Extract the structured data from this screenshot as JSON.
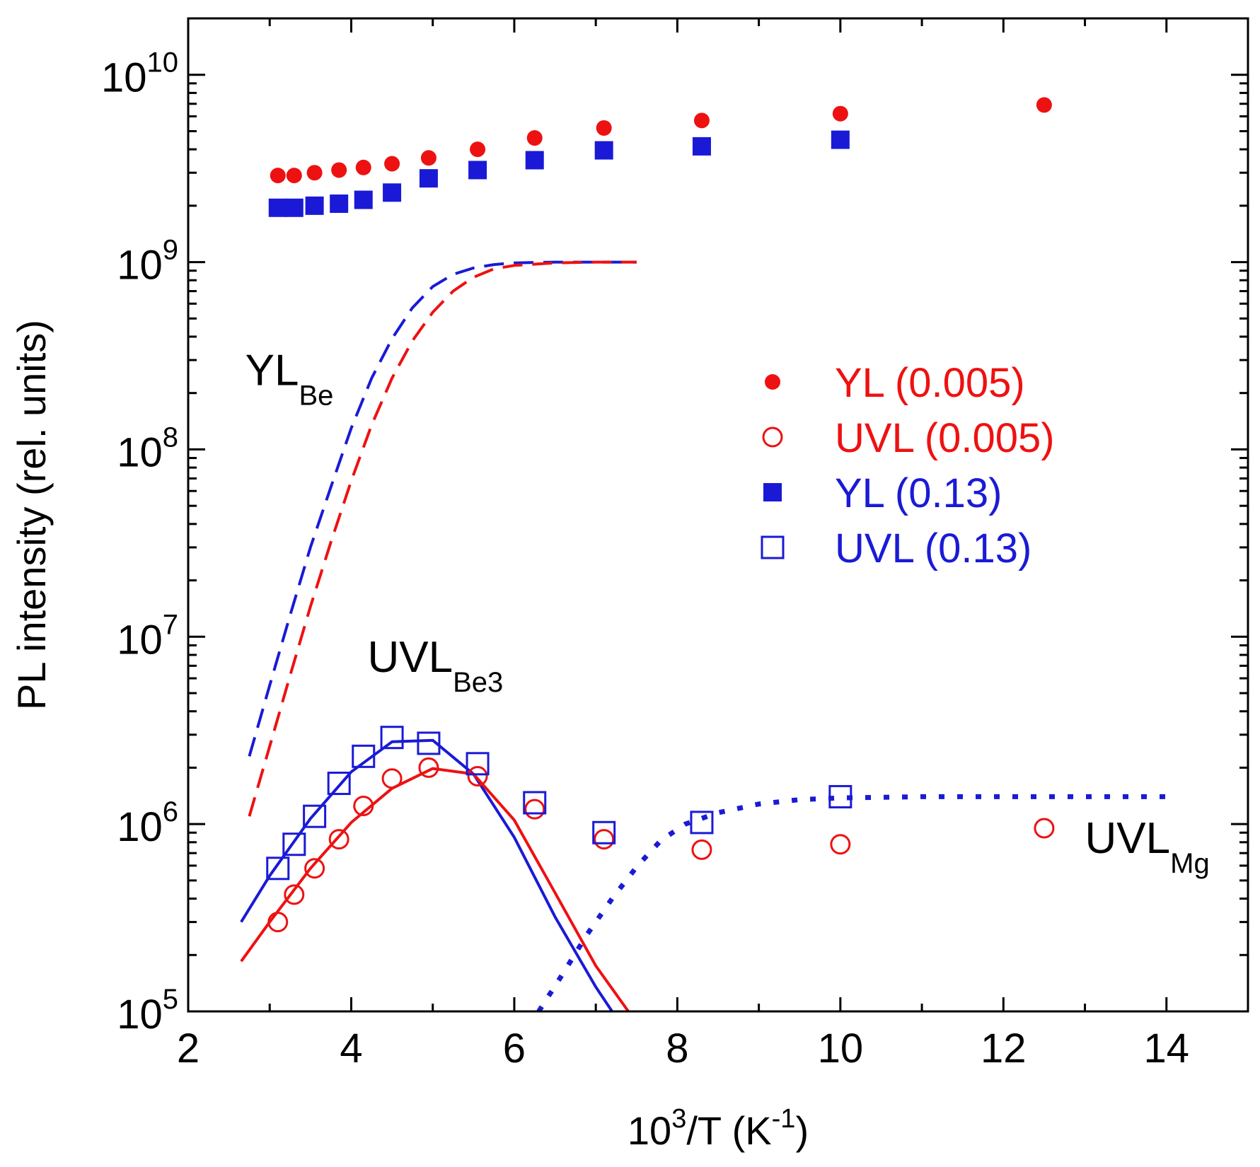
{
  "chart_data": {
    "type": "scatter",
    "title": "",
    "xlabel": {
      "base": "10",
      "sup": "3",
      "mid": "/T (K",
      "sup2": "-1",
      "end": ")"
    },
    "ylabel": "PL intensity (rel. units)",
    "xlim": [
      2,
      15
    ],
    "ylim": [
      100000,
      20000000000
    ],
    "yscale": "log",
    "grid": false,
    "x_ticks": [
      2,
      4,
      6,
      8,
      10,
      12,
      14
    ],
    "x_tick_labels": [
      "2",
      "4",
      "6",
      "8",
      "10",
      "12",
      "14"
    ],
    "y_ticks": [
      {
        "value": 100000,
        "base": "10",
        "exp": "5"
      },
      {
        "value": 1000000,
        "base": "10",
        "exp": "6"
      },
      {
        "value": 10000000,
        "base": "10",
        "exp": "7"
      },
      {
        "value": 100000000,
        "base": "10",
        "exp": "8"
      },
      {
        "value": 1000000000,
        "base": "10",
        "exp": "9"
      },
      {
        "value": 10000000000,
        "base": "10",
        "exp": "10"
      }
    ],
    "series": [
      {
        "name": "YL (0.005)",
        "color": "#ee1111",
        "marker": "circle-filled",
        "x": [
          3.1,
          3.3,
          3.55,
          3.85,
          4.15,
          4.5,
          4.95,
          5.55,
          6.25,
          7.1,
          8.3,
          10.0,
          12.5
        ],
        "y": [
          2900000000.0,
          2900000000.0,
          3000000000.0,
          3100000000.0,
          3200000000.0,
          3350000000.0,
          3600000000.0,
          4000000000.0,
          4600000000.0,
          5200000000.0,
          5700000000.0,
          6200000000.0,
          6900000000.0
        ]
      },
      {
        "name": "UVL (0.005)",
        "color": "#ee1111",
        "marker": "circle-open",
        "x": [
          3.1,
          3.3,
          3.55,
          3.85,
          4.15,
          4.5,
          4.95,
          5.55,
          6.25,
          7.1,
          8.3,
          10.0,
          12.5
        ],
        "y": [
          300000.0,
          420000.0,
          580000.0,
          830000.0,
          1250000.0,
          1750000.0,
          2000000.0,
          1800000.0,
          1200000.0,
          830000.0,
          730000.0,
          780000.0,
          950000.0
        ]
      },
      {
        "name": "YL (0.13)",
        "color": "#1a1ad6",
        "marker": "square-filled",
        "x": [
          3.1,
          3.3,
          3.55,
          3.85,
          4.15,
          4.5,
          4.95,
          5.55,
          6.25,
          7.1,
          8.3,
          10.0
        ],
        "y": [
          1950000000.0,
          1950000000.0,
          2000000000.0,
          2050000000.0,
          2150000000.0,
          2350000000.0,
          2800000000.0,
          3100000000.0,
          3500000000.0,
          3950000000.0,
          4150000000.0,
          4500000000.0
        ]
      },
      {
        "name": "UVL (0.13)",
        "color": "#1a1ad6",
        "marker": "square-open",
        "x": [
          3.1,
          3.3,
          3.55,
          3.85,
          4.15,
          4.5,
          4.95,
          5.55,
          6.25,
          7.1,
          8.3,
          10.0
        ],
        "y": [
          580000.0,
          780000.0,
          1100000.0,
          1650000.0,
          2300000.0,
          2900000.0,
          2700000.0,
          2100000.0,
          1300000.0,
          900000.0,
          1020000.0,
          1400000.0
        ]
      }
    ],
    "fit_lines": [
      {
        "name": "YL Be fit (0.13)",
        "color": "#1a1ad6",
        "style": "dashed",
        "x": [
          2.75,
          3.0,
          3.25,
          3.5,
          3.75,
          4.0,
          4.25,
          4.5,
          4.75,
          5.0,
          5.25,
          5.5,
          5.75,
          6.0,
          6.5,
          7.0,
          7.5
        ],
        "y": [
          2300000.0,
          5500000.0,
          13000000.0,
          30000000.0,
          63000000.0,
          130000000.0,
          240000000.0,
          390000000.0,
          570000000.0,
          740000000.0,
          860000000.0,
          930000000.0,
          970000000.0,
          990000000.0,
          1000000000.0,
          1000000000.0,
          1000000000.0
        ]
      },
      {
        "name": "YL Be fit (0.005)",
        "color": "#ee1111",
        "style": "dashed",
        "x": [
          2.75,
          3.0,
          3.25,
          3.5,
          3.75,
          4.0,
          4.25,
          4.5,
          4.75,
          5.0,
          5.25,
          5.5,
          5.75,
          6.0,
          6.5,
          7.0,
          7.5
        ],
        "y": [
          1100000.0,
          2600000.0,
          6200000.0,
          14500000.0,
          32000000.0,
          68000000.0,
          135000000.0,
          240000000.0,
          380000000.0,
          540000000.0,
          700000000.0,
          830000000.0,
          920000000.0,
          960000000.0,
          990000000.0,
          1000000000.0,
          1000000000.0
        ]
      },
      {
        "name": "UVL Be3 fit (0.13)",
        "color": "#1a1ad6",
        "style": "solid",
        "x": [
          2.65,
          3.0,
          3.5,
          4.0,
          4.5,
          5.0,
          5.5,
          6.0,
          6.5,
          7.0,
          7.2
        ],
        "y": [
          300000.0,
          530000.0,
          1070000.0,
          1900000.0,
          2750000.0,
          2800000.0,
          1850000.0,
          850000.0,
          320000.0,
          135000.0,
          100000.0
        ]
      },
      {
        "name": "UVL Be3 fit (0.005)",
        "color": "#ee1111",
        "style": "solid",
        "x": [
          2.65,
          3.0,
          3.5,
          4.0,
          4.5,
          5.0,
          5.5,
          6.0,
          6.5,
          7.0,
          7.4
        ],
        "y": [
          185000.0,
          300000.0,
          580000.0,
          1020000.0,
          1550000.0,
          1980000.0,
          1850000.0,
          1050000.0,
          430000.0,
          175000.0,
          100000.0
        ]
      },
      {
        "name": "UVL Mg fit",
        "color": "#1a1ad6",
        "style": "dotted",
        "x": [
          6.3,
          6.6,
          6.9,
          7.2,
          7.5,
          7.8,
          8.1,
          8.5,
          9.0,
          9.5,
          10.0,
          11.0,
          12.0,
          13.0,
          14.0
        ],
        "y": [
          100000.0,
          160000.0,
          260000.0,
          400000.0,
          590000.0,
          820000.0,
          1000000.0,
          1150000.0,
          1280000.0,
          1350000.0,
          1380000.0,
          1400000.0,
          1400000.0,
          1400000.0,
          1400000.0
        ]
      }
    ],
    "legend": {
      "position": "right",
      "entries": [
        {
          "label": "YL (0.005)",
          "color": "#ee1111",
          "marker": "circle-filled"
        },
        {
          "label": "UVL (0.005)",
          "color": "#ee1111",
          "marker": "circle-open"
        },
        {
          "label": "YL (0.13)",
          "color": "#1a1ad6",
          "marker": "square-filled"
        },
        {
          "label": "UVL (0.13)",
          "color": "#1a1ad6",
          "marker": "square-open"
        }
      ]
    },
    "annotations": [
      {
        "id": "yl-be",
        "main": "YL",
        "sub": "Be",
        "x": 2.7,
        "y": 220000000.0
      },
      {
        "id": "uvl-be3",
        "main": "UVL",
        "sub": "Be3",
        "x": 4.2,
        "y": 6500000.0
      },
      {
        "id": "uvl-mg",
        "main": "UVL",
        "sub": "Mg",
        "x": 13.0,
        "y": 700000.0
      }
    ]
  }
}
